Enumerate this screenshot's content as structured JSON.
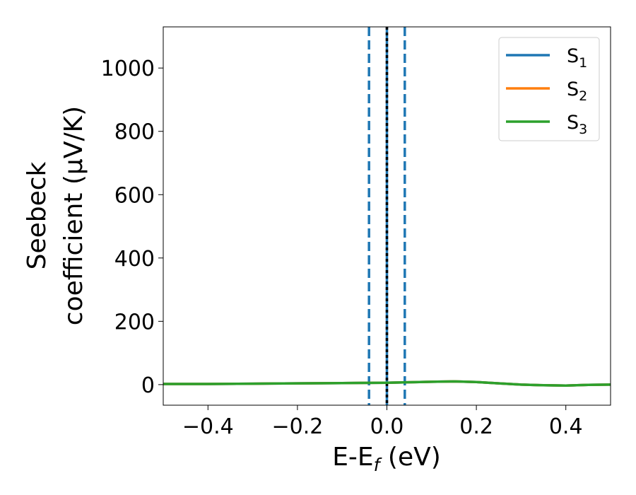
{
  "chart_data": {
    "type": "line",
    "title": "",
    "xlabel": "E-E_f (eV)",
    "xlabel_parts": {
      "main": "E-E",
      "sub": "f",
      "unit": " (eV)"
    },
    "ylabel_line1": "Seebeck",
    "ylabel_line2": "coefficient  (μV/K)",
    "xlim": [
      -0.5,
      0.5
    ],
    "ylim": [
      -65,
      1130
    ],
    "xticks": [
      -0.4,
      -0.2,
      0.0,
      0.2,
      0.4
    ],
    "xtick_labels": [
      "−0.4",
      "−0.2",
      "0.0",
      "0.2",
      "0.4"
    ],
    "yticks": [
      0,
      200,
      400,
      600,
      800,
      1000
    ],
    "ytick_labels": [
      "0",
      "200",
      "400",
      "600",
      "800",
      "1000"
    ],
    "grid": false,
    "legend_position": "top-right",
    "series": [
      {
        "name": "S1",
        "label_main": "S",
        "label_sub": "1",
        "color": "#1f77b4",
        "x": [
          -0.5,
          -0.4,
          -0.3,
          -0.2,
          -0.1,
          0.0,
          0.1,
          0.15,
          0.2,
          0.25,
          0.3,
          0.35,
          0.4,
          0.45,
          0.5
        ],
        "y": [
          2,
          2,
          3,
          4,
          5,
          6,
          9,
          10,
          8,
          4,
          0,
          -2,
          -3,
          -1,
          0
        ]
      },
      {
        "name": "S2",
        "label_main": "S",
        "label_sub": "2",
        "color": "#ff7f0e",
        "x": [
          -0.5,
          -0.4,
          -0.3,
          -0.2,
          -0.1,
          0.0,
          0.1,
          0.15,
          0.2,
          0.25,
          0.3,
          0.35,
          0.4,
          0.45,
          0.5
        ],
        "y": [
          2,
          2,
          3,
          4,
          5,
          6,
          9,
          10,
          8,
          4,
          0,
          -2,
          -3,
          -1,
          0
        ]
      },
      {
        "name": "S3",
        "label_main": "S",
        "label_sub": "3",
        "color": "#2ca02c",
        "x": [
          -0.5,
          -0.4,
          -0.3,
          -0.2,
          -0.1,
          0.0,
          0.1,
          0.15,
          0.2,
          0.25,
          0.3,
          0.35,
          0.4,
          0.45,
          0.5
        ],
        "y": [
          2,
          2,
          3,
          4,
          5,
          6,
          9,
          10,
          8,
          4,
          0,
          -2,
          -3,
          -1,
          0
        ]
      }
    ],
    "vlines": [
      {
        "x": -0.04,
        "color": "#1f77b4",
        "style": "dashed"
      },
      {
        "x": 0.0,
        "color": "#1f77b4",
        "style": "solid"
      },
      {
        "x": 0.0,
        "color": "#000000",
        "style": "dotted"
      },
      {
        "x": 0.04,
        "color": "#1f77b4",
        "style": "dashed"
      }
    ]
  }
}
